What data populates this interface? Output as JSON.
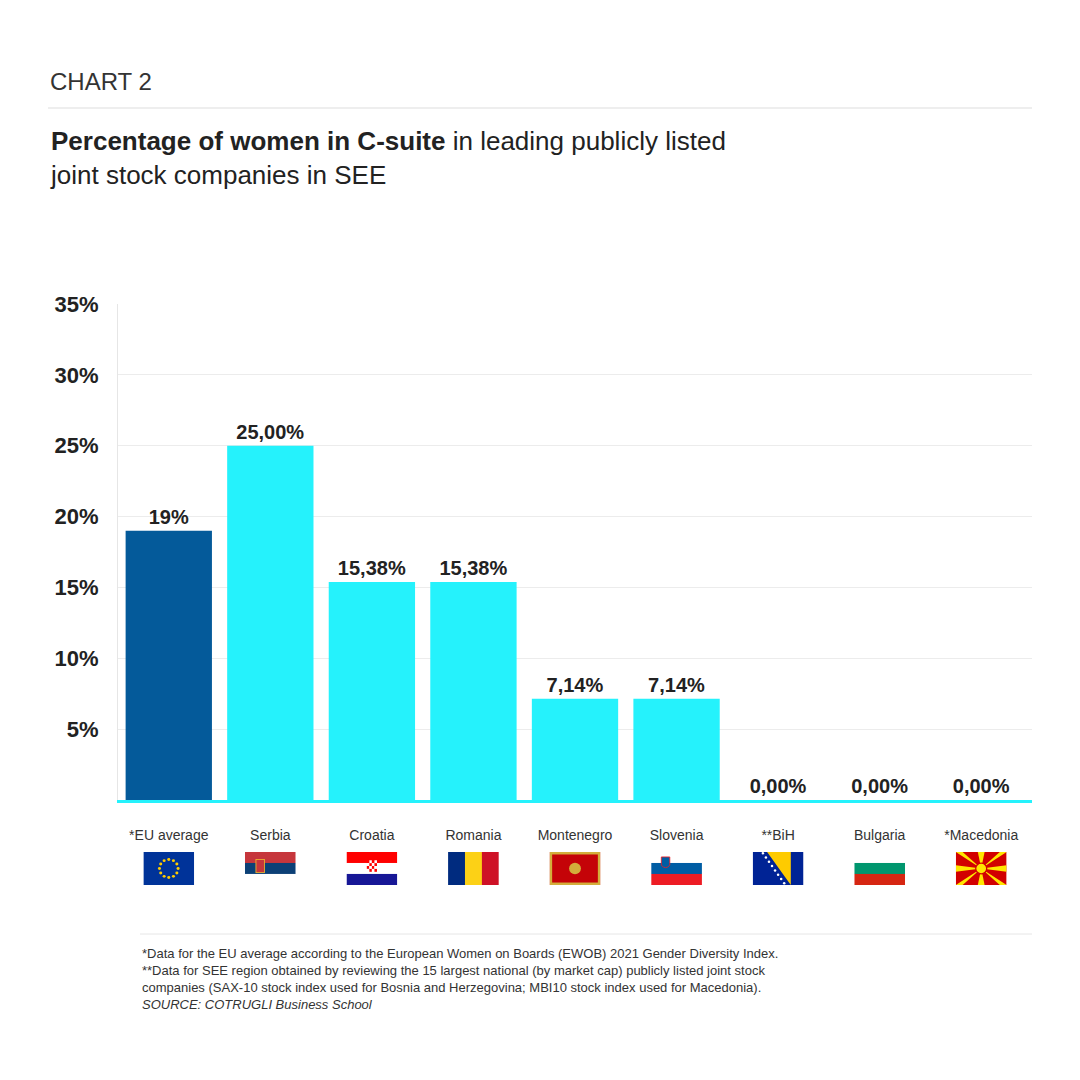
{
  "chart_data": {
    "type": "bar",
    "kicker": "CHART 2",
    "title": [
      "Percentage of women in C-suite",
      "in leading publicly listed joint stock companies in SEE"
    ],
    "categories": [
      "*EU average",
      "Serbia",
      "Croatia",
      "Romania",
      "Montenegro",
      "Slovenia",
      "**BiH",
      "Bulgaria",
      "*Macedonia"
    ],
    "values": [
      19,
      25,
      15.38,
      15.38,
      7.14,
      7.14,
      0,
      0,
      0
    ],
    "value_labels": [
      "19%",
      "25,00%",
      "15,38%",
      "15,38%",
      "7,14%",
      "7,14%",
      "0,00%",
      "0,00%",
      "0,00%"
    ],
    "colors": [
      "#045a9a",
      "#25f2fc",
      "#25f2fc",
      "#25f2fc",
      "#25f2fc",
      "#25f2fc",
      "#25f2fc",
      "#25f2fc",
      "#25f2fc"
    ],
    "ylim": [
      0,
      35
    ],
    "yticks": [
      {
        "value": 5,
        "label": "5%"
      },
      {
        "value": 10,
        "label": "10%"
      },
      {
        "value": 15,
        "label": "15%"
      },
      {
        "value": 20,
        "label": "20%"
      },
      {
        "value": 25,
        "label": "25%"
      },
      {
        "value": 30,
        "label": "30%"
      },
      {
        "value": 35,
        "label": "35%"
      }
    ],
    "grid": true,
    "data_labels": true,
    "notes": [
      "*Data for the EU average according to the European Women on Boards (EWOB) 2021 Gender Diversity Index.",
      "**Data for SEE region obtained by reviewing the 15 largest national (by market cap) publicly listed joint stock companies (SAX-10 stock index used for Bosnia and Herzegovina; MBI10 stock index used for Macedonia)."
    ],
    "source": "SOURCE: COTRUGLI Business School"
  }
}
